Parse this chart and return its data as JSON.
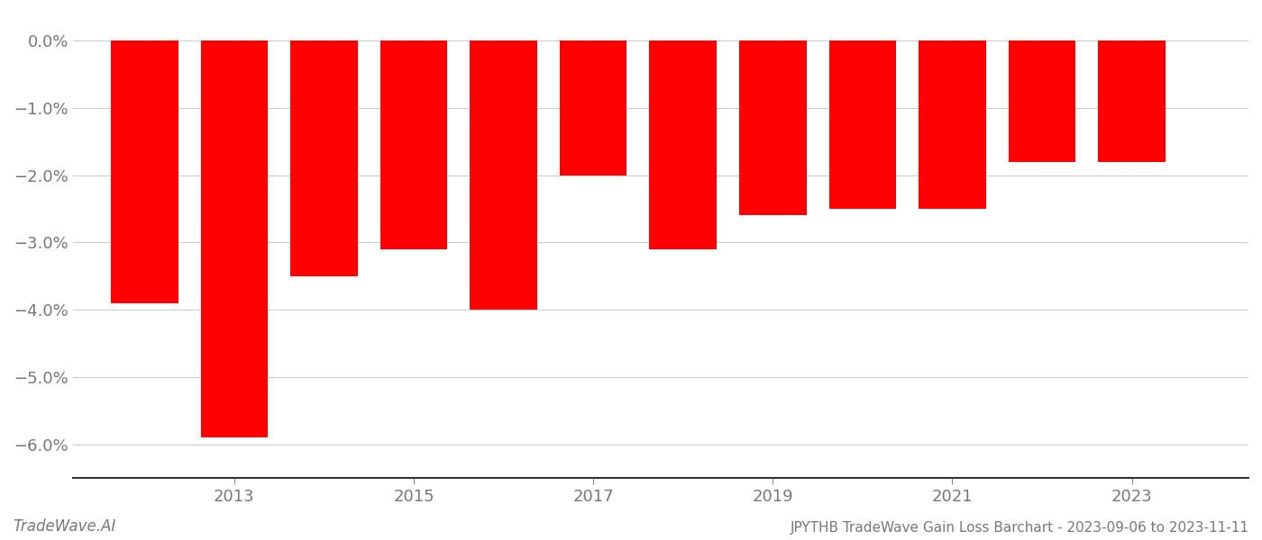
{
  "years": [
    2012,
    2013,
    2014,
    2015,
    2016,
    2017,
    2018,
    2019,
    2020,
    2021,
    2022,
    2023
  ],
  "values": [
    -0.039,
    -0.059,
    -0.035,
    -0.031,
    -0.04,
    -0.02,
    -0.031,
    -0.026,
    -0.025,
    -0.025,
    -0.018,
    -0.018
  ],
  "bar_color": "#ff0000",
  "background_color": "#ffffff",
  "grid_color": "#cccccc",
  "axis_color": "#888888",
  "tick_label_color": "#777777",
  "ylim_min": -0.065,
  "ylim_max": 0.004,
  "title": "JPYTHB TradeWave Gain Loss Barchart - 2023-09-06 to 2023-11-11",
  "watermark": "TradeWave.AI",
  "bar_width": 0.75,
  "figwidth": 14.0,
  "figheight": 6.0,
  "dpi": 100,
  "xtick_positions": [
    2013,
    2015,
    2017,
    2019,
    2021,
    2023
  ],
  "xtick_labels": [
    "2013",
    "2015",
    "2017",
    "2019",
    "2021",
    "2023"
  ],
  "yticks": [
    0.0,
    -0.01,
    -0.02,
    -0.03,
    -0.04,
    -0.05,
    -0.06
  ],
  "ytick_labels": [
    "0.0%",
    "−1.0%",
    "−2.0%",
    "−3.0%",
    "−4.0%",
    "−5.0%",
    "−6.0%"
  ]
}
